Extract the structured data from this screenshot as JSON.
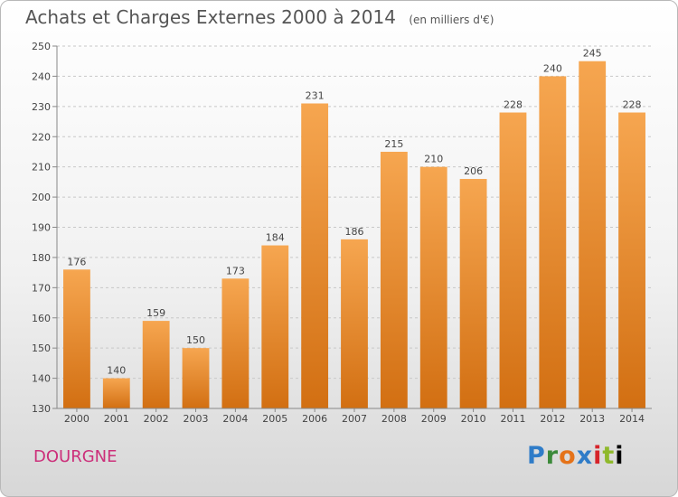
{
  "title": "Achats et Charges Externes 2000 à 2014",
  "subtitle": "(en milliers d'€)",
  "commune": "DOURGNE",
  "logo_letters": [
    "P",
    "r",
    "o",
    "x",
    "i",
    "t",
    "i"
  ],
  "colors": {
    "bar_light": "#f6a650",
    "bar_dark": "#d26f12",
    "grid": "#c8c8c8",
    "title": "#555555",
    "commune": "#cc2f7a"
  },
  "chart_data": {
    "type": "bar",
    "title": "Achats et Charges Externes 2000 à 2014",
    "subtitle": "(en milliers d'€)",
    "xlabel": "",
    "ylabel": "",
    "categories": [
      "2000",
      "2001",
      "2002",
      "2003",
      "2004",
      "2005",
      "2006",
      "2007",
      "2008",
      "2009",
      "2010",
      "2011",
      "2012",
      "2013",
      "2014"
    ],
    "values": [
      176,
      140,
      159,
      150,
      173,
      184,
      231,
      186,
      215,
      210,
      206,
      228,
      240,
      245,
      228
    ],
    "ylim": [
      130,
      250
    ],
    "yticks": [
      130,
      140,
      150,
      160,
      170,
      180,
      190,
      200,
      210,
      220,
      230,
      240,
      250
    ],
    "grid": "horizontal dashed",
    "data_labels": true
  }
}
